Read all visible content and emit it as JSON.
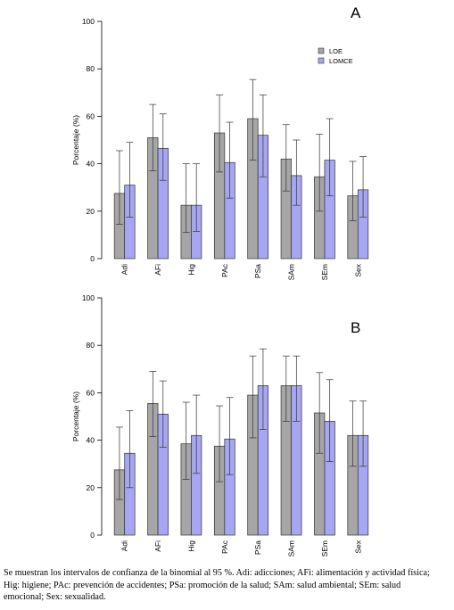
{
  "chart_data": [
    {
      "type": "bar",
      "panel_label": "A",
      "categories": [
        "Adi",
        "AFi",
        "Hig",
        "PAc",
        "PSa",
        "SAm",
        "SEm",
        "Sex"
      ],
      "ylabel": "Porcentaje (%)",
      "ylim": [
        0,
        100
      ],
      "yticks": [
        0,
        20,
        40,
        60,
        80,
        100
      ],
      "legend": {
        "position": "top-right",
        "entries": [
          "LOE",
          "LOMCE"
        ]
      },
      "series": [
        {
          "name": "LOE",
          "color": "#a6a6a6",
          "values": [
            27.5,
            51,
            22.5,
            53,
            59,
            42,
            34.5,
            26.5
          ],
          "ci_low": [
            14.5,
            37,
            11,
            36.5,
            41.5,
            28.5,
            20,
            16
          ],
          "ci_high": [
            45.5,
            65,
            40,
            69,
            75.5,
            56.5,
            52.5,
            41
          ]
        },
        {
          "name": "LOMCE",
          "color": "#a6a6f2",
          "values": [
            31,
            46.5,
            22.5,
            40.5,
            52,
            35,
            41.5,
            29
          ],
          "ci_low": [
            17.5,
            33,
            11.5,
            25.5,
            34.5,
            22.5,
            26.5,
            17.5
          ],
          "ci_high": [
            49,
            61,
            40,
            57.5,
            69,
            50,
            59,
            43
          ]
        }
      ]
    },
    {
      "type": "bar",
      "panel_label": "B",
      "categories": [
        "Adi",
        "AFi",
        "Hig",
        "PAc",
        "PSa",
        "SAm",
        "SEm",
        "Sex"
      ],
      "ylabel": "Porcentaje (%)",
      "ylim": [
        0,
        100
      ],
      "yticks": [
        0,
        20,
        40,
        60,
        80,
        100
      ],
      "series": [
        {
          "name": "LOE",
          "color": "#a6a6a6",
          "values": [
            27.5,
            55.5,
            38.5,
            37.5,
            59,
            63,
            51.5,
            42
          ],
          "ci_low": [
            15,
            41.5,
            23.5,
            22.5,
            41,
            48,
            34.5,
            29
          ],
          "ci_high": [
            45.5,
            69,
            56,
            54.5,
            75.5,
            75.5,
            68.5,
            56.5
          ]
        },
        {
          "name": "LOMCE",
          "color": "#a6a6f2",
          "values": [
            34.5,
            51,
            42,
            40.5,
            63,
            63,
            48,
            42
          ],
          "ci_low": [
            20,
            37,
            26,
            25.5,
            44.5,
            48,
            31,
            29
          ],
          "ci_high": [
            52.5,
            65,
            59,
            58,
            78.5,
            75.5,
            65.5,
            56.5
          ]
        }
      ]
    }
  ],
  "caption": {
    "line1": "Se muestran los intervalos de confianza de la binomial al 95 %. Adi: adicciones; AFi: alimentación y actividad física;",
    "line2": "Hig: higiene; PAc: prevención de accidentes; PSa: promoción de la salud; SAm: salud ambiental; SEm: salud",
    "line3": "emocional; Sex: sexualidad."
  }
}
